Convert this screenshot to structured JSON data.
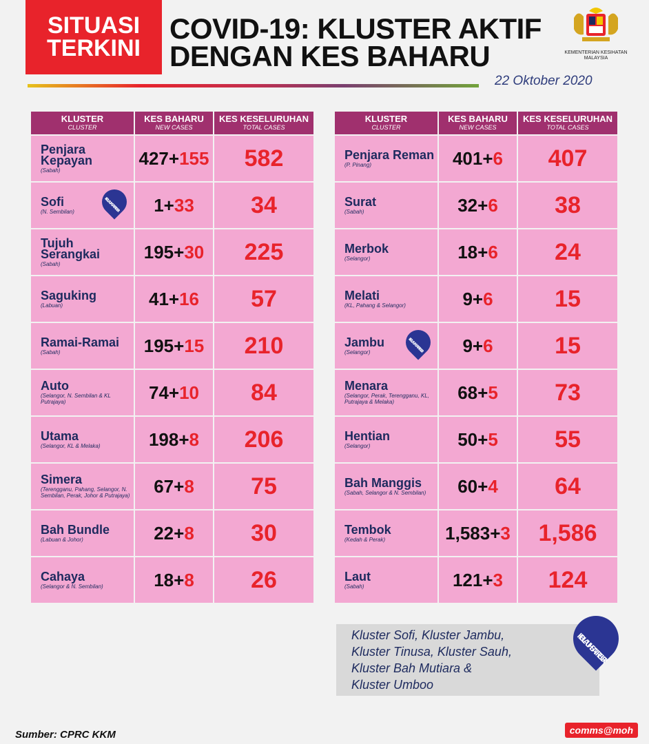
{
  "badge": {
    "line1": "SITUASI",
    "line2": "TERKINI"
  },
  "title": {
    "line1": "COVID-19: KLUSTER AKTIF",
    "line2": "DENGAN KES BAHARU"
  },
  "ministry": {
    "line1": "KEMENTERIAN KESIHATAN",
    "line2": "MALAYSIA"
  },
  "date": "22 Oktober 2020",
  "headers": {
    "cluster": "KLUSTER",
    "cluster_sub": "CLUSTER",
    "new": "KES BAHARU",
    "new_sub": "NEW CASES",
    "total": "KES KESELURUHAN",
    "total_sub": "TOTAL CASES"
  },
  "pin_label": {
    "line1": "KLUSTER",
    "line2": "BAHARU"
  },
  "left_rows": [
    {
      "name": "Penjara Kepayan",
      "state": "(Sabah)",
      "base": "427+",
      "inc": "155",
      "total": "582",
      "pin": false
    },
    {
      "name": "Sofi",
      "state": "(N. Sembilan)",
      "base": "1+",
      "inc": "33",
      "total": "34",
      "pin": true
    },
    {
      "name": "Tujuh Serangkai",
      "state": "(Sabah)",
      "base": "195+",
      "inc": "30",
      "total": "225",
      "pin": false
    },
    {
      "name": "Saguking",
      "state": "(Labuan)",
      "base": "41+",
      "inc": "16",
      "total": "57",
      "pin": false
    },
    {
      "name": "Ramai-Ramai",
      "state": "(Sabah)",
      "base": "195+",
      "inc": "15",
      "total": "210",
      "pin": false
    },
    {
      "name": "Auto",
      "state": "(Selangor, N. Sembilan & KL Putrajaya)",
      "base": "74+",
      "inc": "10",
      "total": "84",
      "pin": false
    },
    {
      "name": "Utama",
      "state": "(Selangor, KL & Melaka)",
      "base": "198+",
      "inc": "8",
      "total": "206",
      "pin": false
    },
    {
      "name": "Simera",
      "state": "(Terengganu, Pahang, Selangor, N. Sembilan, Perak, Johor & Putrajaya)",
      "base": "67+",
      "inc": "8",
      "total": "75",
      "pin": false
    },
    {
      "name": "Bah Bundle",
      "state": "(Labuan & Johor)",
      "base": "22+",
      "inc": "8",
      "total": "30",
      "pin": false
    },
    {
      "name": "Cahaya",
      "state": "(Selangor & N. Sembilan)",
      "base": "18+",
      "inc": "8",
      "total": "26",
      "pin": false
    }
  ],
  "right_rows": [
    {
      "name": "Penjara Reman",
      "state": "(P. Pinang)",
      "base": "401+",
      "inc": "6",
      "total": "407",
      "pin": false
    },
    {
      "name": "Surat",
      "state": "(Sabah)",
      "base": "32+",
      "inc": "6",
      "total": "38",
      "pin": false
    },
    {
      "name": "Merbok",
      "state": "(Selangor)",
      "base": "18+",
      "inc": "6",
      "total": "24",
      "pin": false
    },
    {
      "name": "Melati",
      "state": "(KL, Pahang & Selangor)",
      "base": "9+",
      "inc": "6",
      "total": "15",
      "pin": false
    },
    {
      "name": "Jambu",
      "state": "(Selangor)",
      "base": "9+",
      "inc": "6",
      "total": "15",
      "pin": true
    },
    {
      "name": "Menara",
      "state": "(Selangor, Perak, Terengganu, KL, Putrajaya & Melaka)",
      "base": "68+",
      "inc": "5",
      "total": "73",
      "pin": false
    },
    {
      "name": "Hentian",
      "state": "(Selangor)",
      "base": "50+",
      "inc": "5",
      "total": "55",
      "pin": false
    },
    {
      "name": "Bah Manggis",
      "state": "(Sabah, Selangor & N. Sembilan)",
      "base": "60+",
      "inc": "4",
      "total": "64",
      "pin": false
    },
    {
      "name": "Tembok",
      "state": "(Kedah & Perak)",
      "base": "1,583+",
      "inc": "3",
      "total": "1,586",
      "pin": false
    },
    {
      "name": "Laut",
      "state": "(Sabah)",
      "base": "121+",
      "inc": "3",
      "total": "124",
      "pin": false
    }
  ],
  "note": {
    "line1": "Kluster Sofi, Kluster Jambu,",
    "line2": "Kluster Tinusa, Kluster Sauh,",
    "line3": "Kluster Bah Mutiara &",
    "line4": "Kluster Umboo"
  },
  "source": "Sumber: CPRC KKM",
  "watermark": "comms@moh",
  "colors": {
    "accent_red": "#e8232b",
    "header_purple": "#a0306e",
    "row_pink": "#f3a8d2",
    "navy": "#2b3593"
  }
}
